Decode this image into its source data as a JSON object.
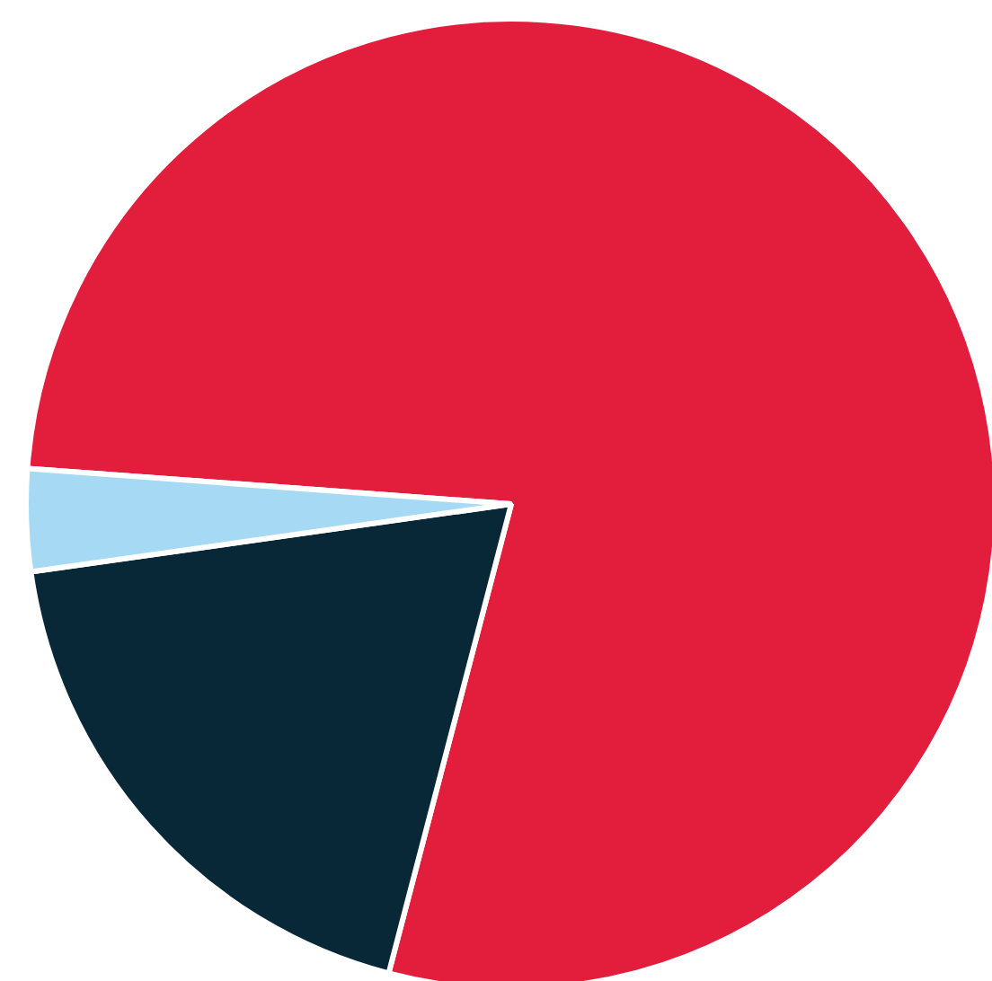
{
  "chart_data": {
    "type": "pie",
    "categories": [
      null,
      null,
      null
    ],
    "values": [
      77.9,
      18.7,
      3.4
    ],
    "colors": [
      "#e31d3c",
      "#082838",
      "#a6daf4"
    ]
  }
}
